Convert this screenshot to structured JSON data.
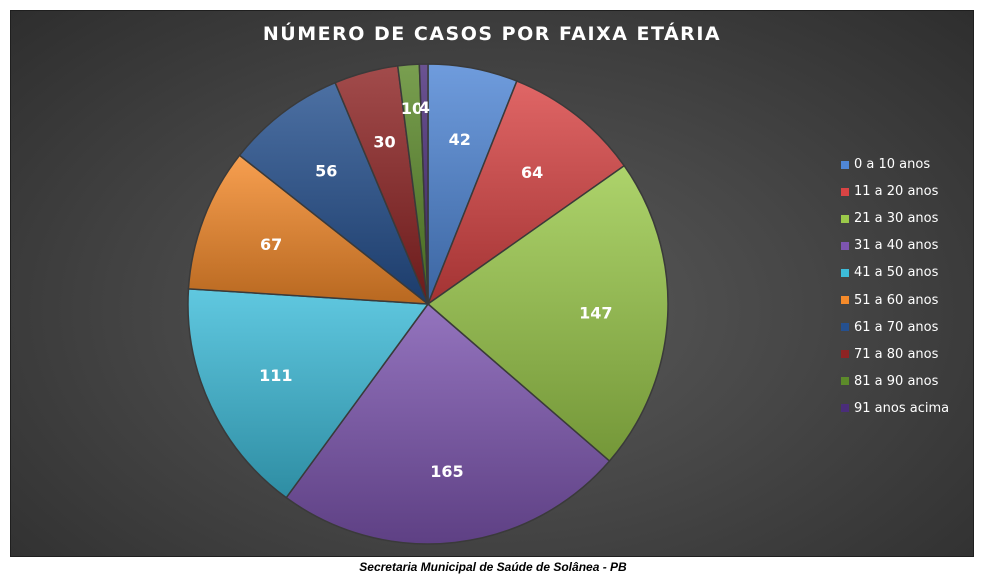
{
  "chart_data": {
    "type": "pie",
    "title": "NÚMERO DE CASOS POR FAIXA ETÁRIA",
    "categories": [
      "0 a 10 anos",
      "11 a 20 anos",
      "21 a 30 anos",
      "31 a 40 anos",
      "41 a 50 anos",
      "51 a 60 anos",
      "61 a 70 anos",
      "71 a 80 anos",
      "81 a 90 anos",
      "91 anos acima"
    ],
    "values": [
      42,
      64,
      147,
      165,
      111,
      67,
      56,
      30,
      10,
      4
    ],
    "colors": [
      "#4f86d6",
      "#d94444",
      "#9bc94a",
      "#7d55b0",
      "#3dbcd9",
      "#f58a2a",
      "#25508f",
      "#8e2424",
      "#5c8a2a",
      "#4a2d7a"
    ],
    "legend_position": "right",
    "data_labels": true
  },
  "footer": "Secretaria Municipal de Saúde de Solânea - PB"
}
